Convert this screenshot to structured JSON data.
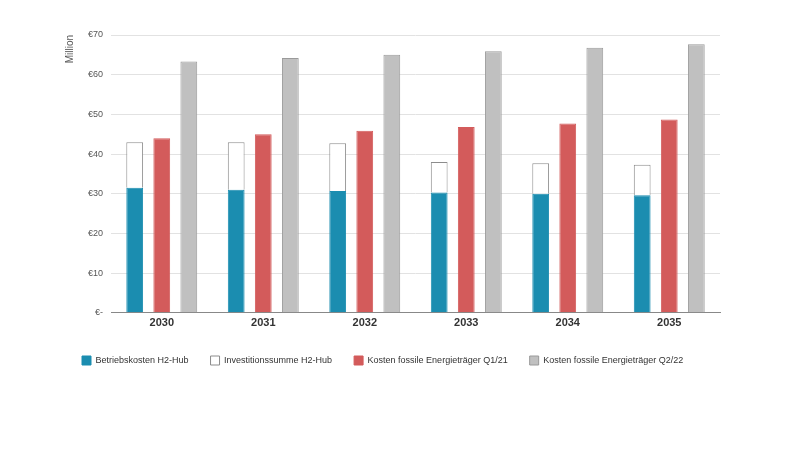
{
  "chart_data": {
    "type": "bar",
    "y_label": "Million",
    "categories": [
      "2030",
      "2031",
      "2032",
      "2033",
      "2034",
      "2035"
    ],
    "series": [
      {
        "name": "Betriebskosten H2-Hub",
        "color": "#1b8db0",
        "values": [
          31.5,
          31.0,
          30.7,
          30.3,
          30.0,
          29.6
        ]
      },
      {
        "name": "Investitionssumme H2-Hub",
        "color": "#ffffff",
        "stacked": true,
        "values": [
          11.5,
          12.0,
          12.0,
          7.7,
          7.7,
          7.7
        ]
      },
      {
        "name": "Kosten fossile Energieträger Q1/21",
        "color": "#d35b5b",
        "values": [
          44.0,
          45.0,
          45.9,
          46.8,
          47.7,
          48.7
        ]
      },
      {
        "name": "Kosten fossile Energieträger Q2/22",
        "color": "#c0c0c0",
        "values": [
          63.3,
          64.2,
          65.0,
          65.9,
          66.8,
          67.7
        ]
      }
    ],
    "ylim": [
      0,
      70
    ],
    "yticks": [
      {
        "value": 0,
        "label": "€-"
      },
      {
        "value": 10,
        "label": "€10"
      },
      {
        "value": 20,
        "label": "€20"
      },
      {
        "value": 30,
        "label": "€30"
      },
      {
        "value": 40,
        "label": "€40"
      },
      {
        "value": 50,
        "label": "€50"
      },
      {
        "value": 60,
        "label": "€60"
      },
      {
        "value": 70,
        "label": "€70"
      }
    ],
    "grid": true,
    "legend": "bottom"
  }
}
